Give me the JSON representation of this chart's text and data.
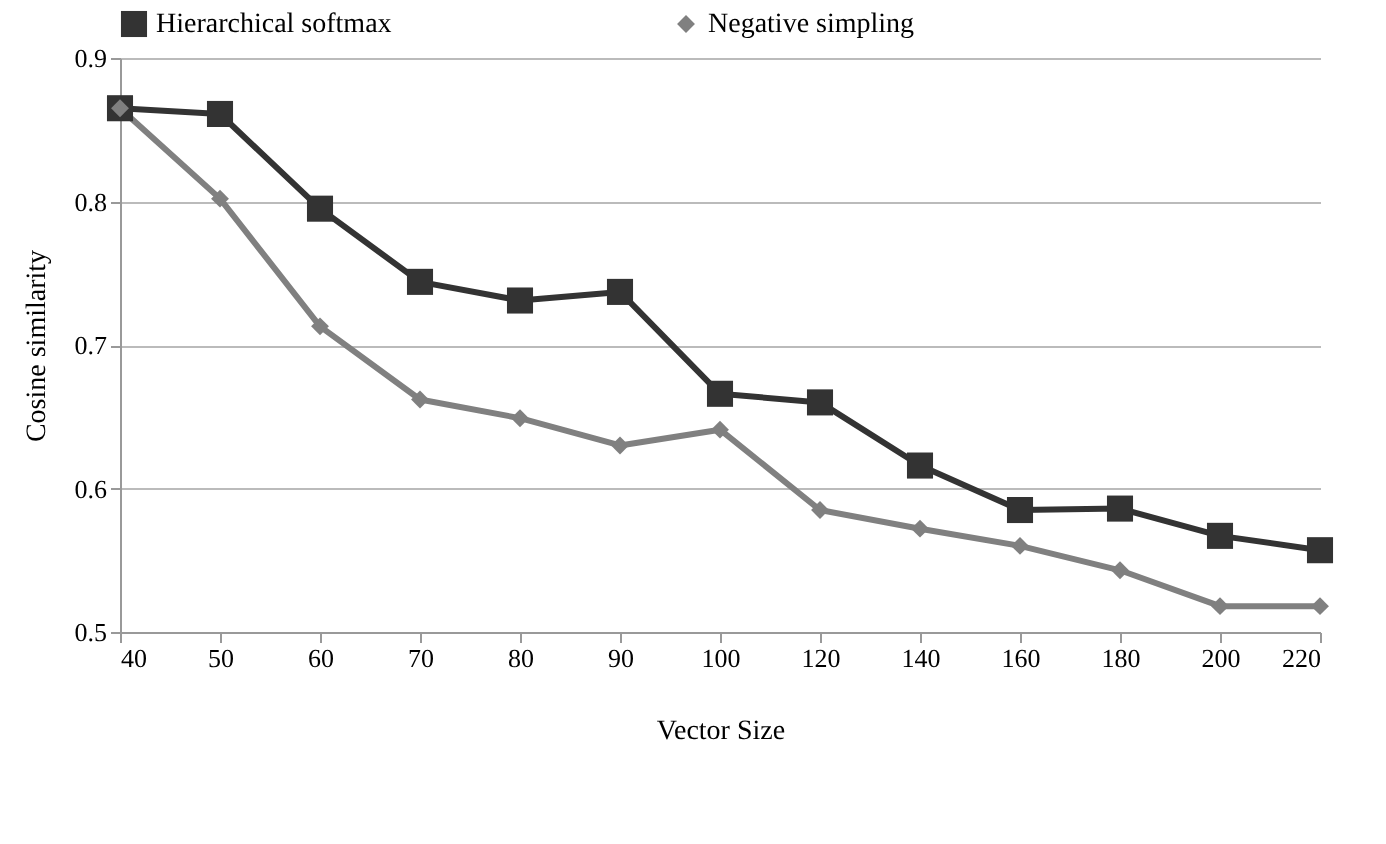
{
  "chart_data": {
    "type": "line",
    "xlabel": "Vector Size",
    "ylabel": "Cosine similarity",
    "categories": [
      "40",
      "50",
      "60",
      "70",
      "80",
      "90",
      "100",
      "120",
      "140",
      "160",
      "180",
      "200",
      "220"
    ],
    "series": [
      {
        "name": "Hierarchical softmax",
        "color": "#333333",
        "marker": "square",
        "values": [
          0.865,
          0.861,
          0.795,
          0.744,
          0.731,
          0.737,
          0.666,
          0.66,
          0.616,
          0.585,
          0.586,
          0.567,
          0.557
        ]
      },
      {
        "name": "Negative simpling",
        "color": "#808080",
        "marker": "diamond",
        "values": [
          0.865,
          0.802,
          0.713,
          0.662,
          0.649,
          0.63,
          0.641,
          0.585,
          0.572,
          0.56,
          0.543,
          0.518,
          0.518
        ]
      }
    ],
    "ylim": [
      0.5,
      0.9
    ],
    "yticks": [
      0.5,
      0.6,
      0.7,
      0.8,
      0.9
    ],
    "grid": "y",
    "legend": "top left",
    "line_style": "solid"
  }
}
